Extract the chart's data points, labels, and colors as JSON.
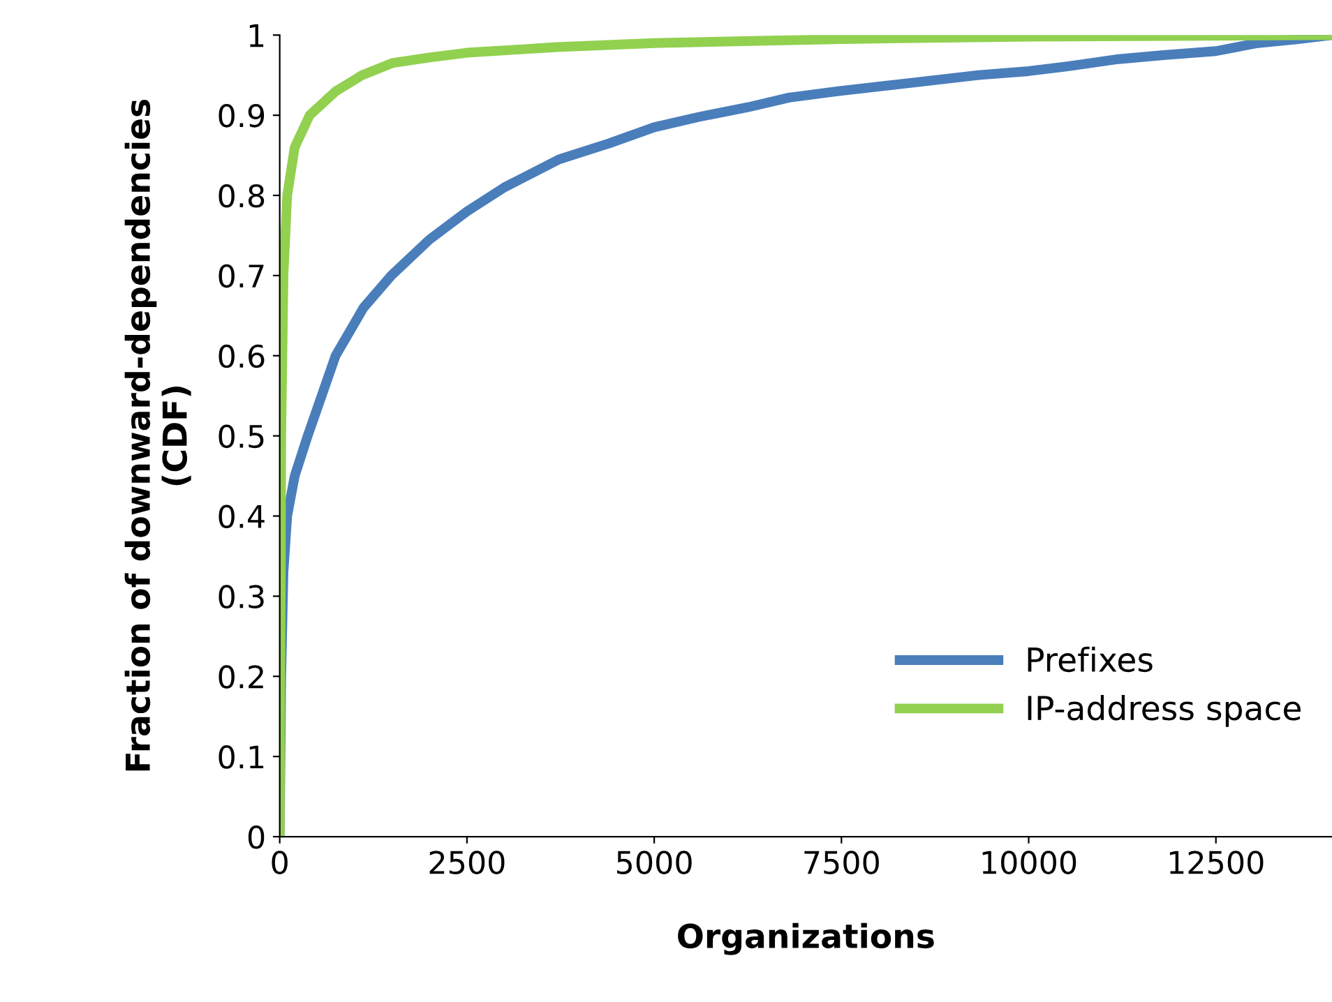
{
  "chart_data": {
    "type": "line",
    "xlabel": "Organizations",
    "ylabel": "Fraction of downward-dependencies\n(CDF)",
    "xlim": [
      0,
      14050
    ],
    "ylim": [
      0,
      1
    ],
    "xticks": [
      0,
      2500,
      5000,
      7500,
      10000,
      12500
    ],
    "yticks": [
      0,
      {
        "value": 0.1,
        "label": "0.1"
      },
      {
        "value": 0.2,
        "label": "0.2"
      },
      {
        "value": 0.3,
        "label": "0.3"
      },
      {
        "value": 0.4,
        "label": "0.4"
      },
      {
        "value": 0.5,
        "label": "0.5"
      },
      {
        "value": 0.6,
        "label": "0.6"
      },
      {
        "value": 0.7,
        "label": "0.7"
      },
      {
        "value": 0.8,
        "label": "0.8"
      },
      {
        "value": 0.9,
        "label": "0.9"
      },
      1
    ],
    "grid": false,
    "legend": "bottom right",
    "marker": "none",
    "line_style": "solid",
    "series": [
      {
        "name": "Prefixes",
        "color": "#4a7ebb",
        "x": [
          0,
          20,
          50,
          100,
          200,
          373,
          746,
          1120,
          1490,
          2000,
          2500,
          3000,
          3730,
          4400,
          5000,
          5600,
          6250,
          6800,
          7460,
          8400,
          9330,
          10000,
          10600,
          11200,
          11800,
          12500,
          13060,
          13600,
          14050
        ],
        "values": [
          0,
          0.2,
          0.33,
          0.4,
          0.45,
          0.5,
          0.6,
          0.66,
          0.7,
          0.745,
          0.78,
          0.81,
          0.845,
          0.865,
          0.885,
          0.898,
          0.91,
          0.922,
          0.93,
          0.94,
          0.95,
          0.955,
          0.962,
          0.97,
          0.975,
          0.98,
          0.99,
          0.995,
          1.0
        ]
      },
      {
        "name": "IP-address space",
        "color": "#92d050",
        "x": [
          0,
          20,
          50,
          100,
          200,
          400,
          750,
          1100,
          1500,
          2000,
          2500,
          3700,
          5000,
          7500,
          10000,
          14050
        ],
        "values": [
          0,
          0.5,
          0.7,
          0.8,
          0.86,
          0.9,
          0.93,
          0.95,
          0.965,
          0.972,
          0.978,
          0.985,
          0.99,
          0.995,
          0.998,
          1.0
        ]
      }
    ]
  }
}
